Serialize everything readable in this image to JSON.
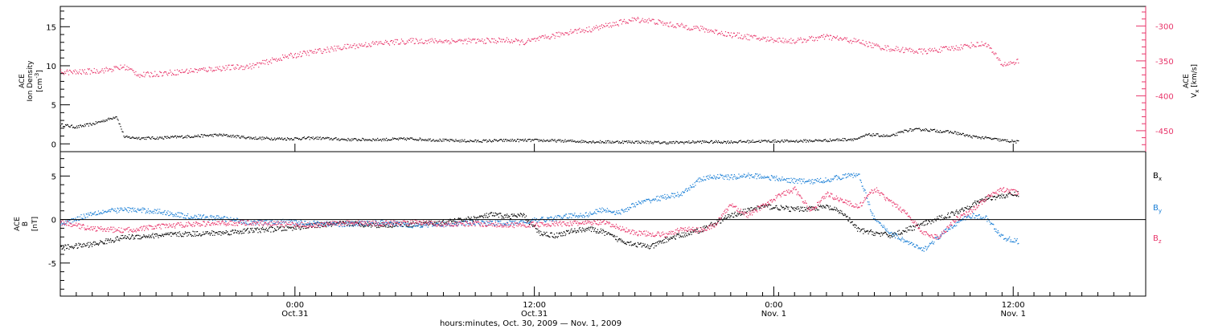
{
  "colors": {
    "density": "#000000",
    "speed": "#e8356a",
    "bx": "#000000",
    "by": "#1a7fd6",
    "bz": "#e8356a"
  },
  "x_axis": {
    "label": "hours:minutes, Oct. 30, 2009 — Nov. 1, 2009",
    "range_hours": [
      0,
      68
    ],
    "major_ticks": [
      {
        "t": 14.7,
        "time": "0:00",
        "date": "Oct.31"
      },
      {
        "t": 29.7,
        "time": "12:00",
        "date": "Oct.31"
      },
      {
        "t": 44.7,
        "time": "0:00",
        "date": "Nov. 1"
      },
      {
        "t": 59.7,
        "time": "12:00",
        "date": "Nov. 1"
      }
    ]
  },
  "chart_data": [
    {
      "type": "scatter",
      "panel": "top",
      "ylabel_left": {
        "line1": "ACE",
        "line2": "Ion Density",
        "unit": "[cm",
        "unit_sup": "-3",
        "unit_end": "]"
      },
      "ylabel_right": {
        "line1": "ACE",
        "main": "V",
        "sub": "x",
        "unit": "[km/s]"
      },
      "ylim_left": [
        -1,
        17.6
      ],
      "yticks_left": [
        0,
        5,
        10,
        15
      ],
      "ylim_right": [
        -480,
        -272
      ],
      "yticks_right": [
        -300,
        -350,
        -400,
        -450
      ],
      "series": [
        {
          "axis": "left",
          "color_key": "density",
          "x": [
            0,
            1,
            2,
            3,
            3.5,
            4,
            5,
            6,
            7,
            8,
            9,
            10,
            12,
            14,
            16,
            18,
            20,
            22,
            24,
            26,
            28,
            30,
            32,
            34,
            36,
            38,
            40,
            42,
            44,
            46,
            48,
            50,
            50.5,
            51,
            52,
            53,
            54,
            56,
            57,
            58,
            59,
            60
          ],
          "y": [
            2.5,
            2.2,
            2.6,
            3.2,
            3.6,
            0.9,
            0.8,
            0.8,
            0.9,
            1.0,
            1.1,
            1.2,
            0.8,
            0.7,
            0.8,
            0.6,
            0.6,
            0.7,
            0.5,
            0.4,
            0.5,
            0.5,
            0.4,
            0.3,
            0.3,
            0.2,
            0.3,
            0.3,
            0.4,
            0.4,
            0.5,
            0.7,
            1.2,
            1.2,
            1.0,
            1.8,
            1.9,
            1.5,
            1.0,
            0.8,
            0.5,
            0.3
          ]
        },
        {
          "axis": "right",
          "color_key": "speed",
          "x": [
            0,
            1,
            2,
            3,
            4,
            5,
            6,
            8,
            10,
            12,
            14,
            16,
            18,
            20,
            22,
            24,
            26,
            28,
            29,
            30,
            31,
            32,
            33,
            34,
            35,
            36,
            37,
            38,
            40,
            42,
            44,
            46,
            48,
            50,
            51,
            52,
            54,
            56,
            57,
            58,
            59,
            60
          ],
          "y": [
            -365,
            -366,
            -364,
            -362,
            -358,
            -370,
            -368,
            -364,
            -360,
            -357,
            -344,
            -336,
            -329,
            -324,
            -321,
            -321,
            -321,
            -320,
            -323,
            -318,
            -313,
            -307,
            -305,
            -300,
            -295,
            -290,
            -292,
            -297,
            -303,
            -312,
            -318,
            -321,
            -315,
            -322,
            -328,
            -332,
            -336,
            -331,
            -327,
            -325,
            -355,
            -350
          ]
        }
      ]
    },
    {
      "type": "scatter",
      "panel": "bottom",
      "ylabel_left": {
        "line1": "ACE",
        "main": "B",
        "unit": "[nT]"
      },
      "ylim": [
        -8.8,
        7.8
      ],
      "yticks": [
        -5,
        0,
        5
      ],
      "legend": [
        {
          "main": "B",
          "sub": "x",
          "color_key": "bx"
        },
        {
          "main": "B",
          "sub": "y",
          "color_key": "by"
        },
        {
          "main": "B",
          "sub": "z",
          "color_key": "bz"
        }
      ],
      "series": [
        {
          "color_key": "bx",
          "x": [
            0,
            2,
            4,
            6,
            8,
            10,
            12,
            14,
            16,
            18,
            20,
            22,
            24,
            26,
            27,
            28,
            29,
            30,
            31,
            32,
            33,
            34,
            35,
            36,
            37,
            38,
            40,
            42,
            44,
            46,
            48,
            49,
            50,
            52,
            54,
            56,
            58,
            60
          ],
          "y": [
            -3.2,
            -2.8,
            -2.0,
            -1.8,
            -1.6,
            -1.5,
            -1.2,
            -1.0,
            -0.6,
            -0.4,
            -0.6,
            -0.5,
            -0.3,
            0.2,
            0.6,
            0.4,
            0.5,
            -1.5,
            -1.8,
            -1.3,
            -1.0,
            -1.4,
            -2.3,
            -2.8,
            -3.1,
            -2.2,
            -1.2,
            0.5,
            1.6,
            1.2,
            1.5,
            0.8,
            -1.2,
            -1.8,
            -0.5,
            0.8,
            2.5,
            3.0
          ]
        },
        {
          "color_key": "by",
          "x": [
            0,
            2,
            4,
            6,
            8,
            10,
            12,
            14,
            16,
            18,
            20,
            22,
            24,
            26,
            28,
            30,
            31,
            32,
            33,
            34,
            35,
            36,
            37,
            38,
            39,
            40,
            41,
            42,
            43,
            44,
            45,
            46,
            47,
            48,
            49,
            50,
            51,
            52,
            53,
            54,
            55,
            56,
            57,
            58,
            59,
            60
          ],
          "y": [
            -0.5,
            0.8,
            1.2,
            1.0,
            0.4,
            0.2,
            -0.3,
            -0.2,
            -0.4,
            -0.5,
            -0.3,
            -0.6,
            -0.5,
            -0.3,
            -0.4,
            0.0,
            0.2,
            0.5,
            0.6,
            1.2,
            0.8,
            1.8,
            2.3,
            2.7,
            3.0,
            4.6,
            5.0,
            4.9,
            5.1,
            5.0,
            4.7,
            4.5,
            4.4,
            4.6,
            5.0,
            5.2,
            0.0,
            -1.5,
            -2.5,
            -3.5,
            -2.0,
            -0.5,
            0.5,
            0.2,
            -2.0,
            -2.5
          ]
        },
        {
          "color_key": "bz",
          "x": [
            0,
            2,
            4,
            6,
            8,
            10,
            12,
            14,
            16,
            18,
            20,
            22,
            24,
            26,
            28,
            30,
            32,
            34,
            36,
            38,
            39,
            40,
            41,
            42,
            43,
            44,
            45,
            46,
            47,
            48,
            49,
            50,
            51,
            52,
            53,
            54,
            55,
            56,
            57,
            58,
            59,
            60
          ],
          "y": [
            -0.3,
            -1.0,
            -1.2,
            -0.8,
            -0.5,
            -0.4,
            -0.3,
            -0.5,
            -0.6,
            -0.3,
            -0.4,
            -0.3,
            -0.5,
            -0.4,
            -0.6,
            -0.5,
            -0.4,
            -0.3,
            -1.5,
            -1.7,
            -1.0,
            -1.2,
            -0.6,
            1.8,
            0.5,
            1.6,
            2.8,
            3.5,
            1.0,
            3.0,
            2.2,
            1.5,
            3.6,
            2.0,
            0.8,
            -1.5,
            -2.0,
            0.0,
            1.0,
            2.5,
            3.5,
            3.1
          ]
        }
      ]
    }
  ]
}
